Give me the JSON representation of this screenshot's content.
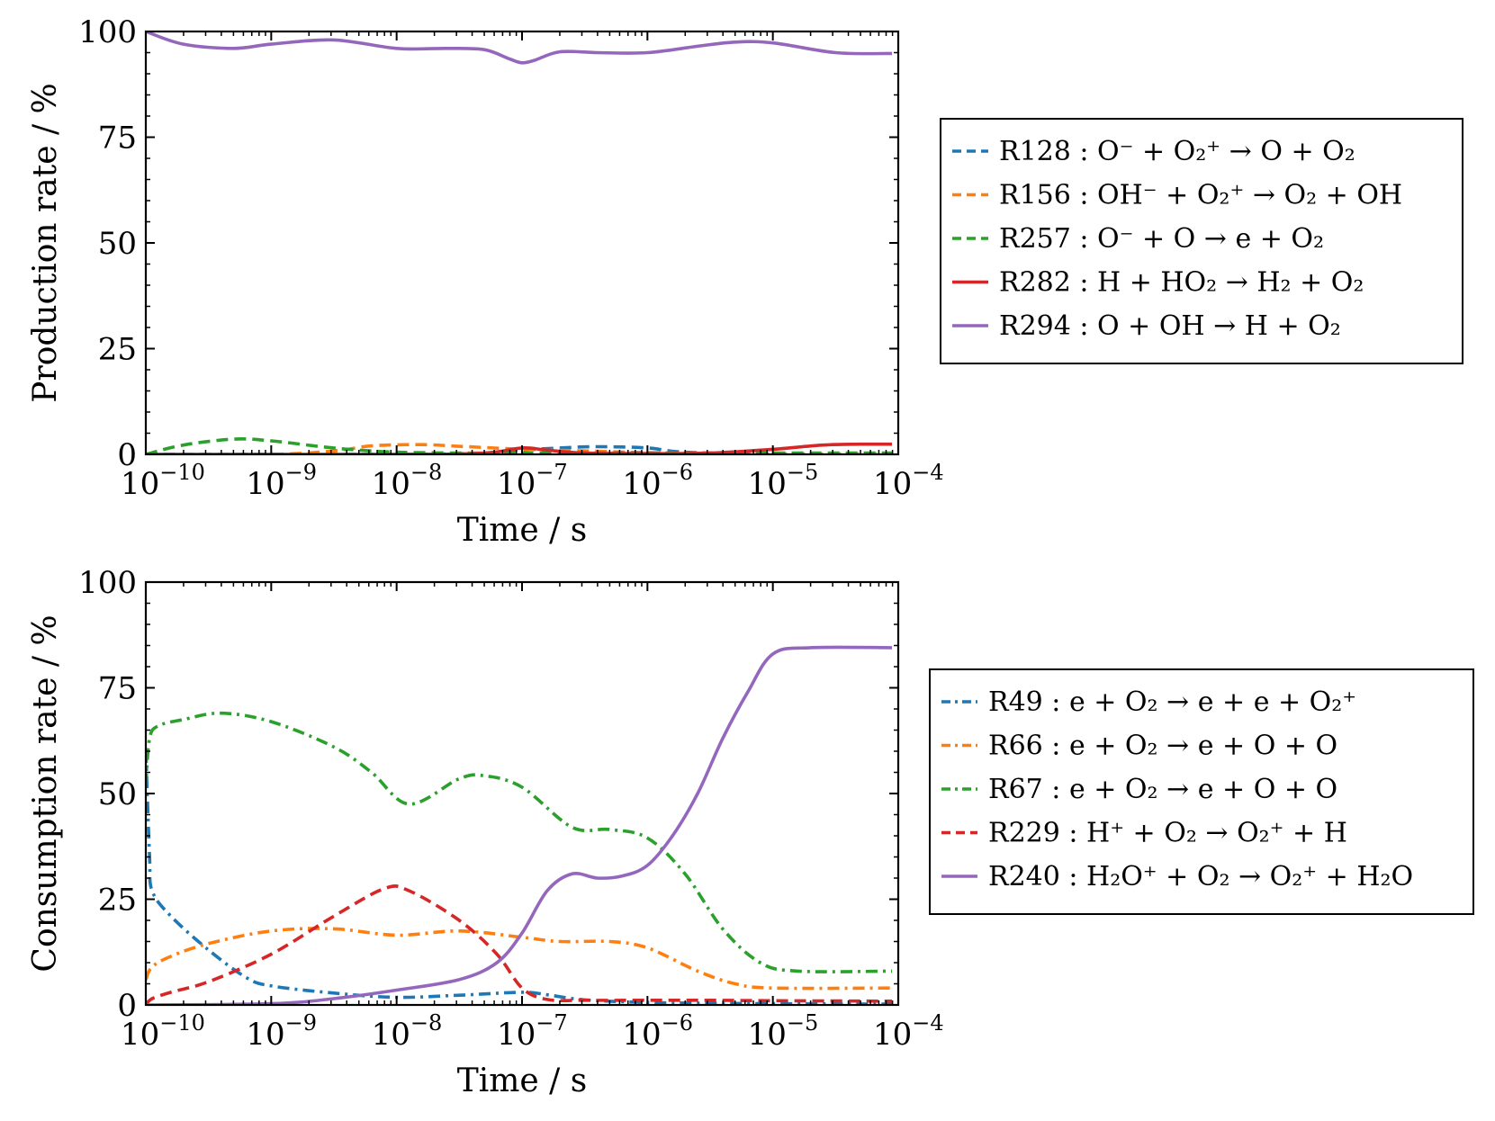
{
  "chart_data": [
    {
      "type": "line",
      "title": "",
      "xlabel": "Time / s",
      "ylabel": "Production rate / %",
      "xscale": "log",
      "xlim_exponent": [
        -10,
        -4
      ],
      "ylim": [
        0,
        100
      ],
      "yticks": [
        0,
        25,
        50,
        75,
        100
      ],
      "xticks": [
        {
          "base": "10",
          "exp": "−10"
        },
        {
          "base": "10",
          "exp": "−9"
        },
        {
          "base": "10",
          "exp": "−8"
        },
        {
          "base": "10",
          "exp": "−7"
        },
        {
          "base": "10",
          "exp": "−6"
        },
        {
          "base": "10",
          "exp": "−5"
        },
        {
          "base": "10",
          "exp": "−4"
        }
      ],
      "legend_position": "right",
      "series": [
        {
          "name": "R128 :  O⁻ + O₂⁺ → O + O₂",
          "color": "#1f77b4",
          "style": "dashed",
          "x": [
            -10,
            -9,
            -8,
            -7.3,
            -7,
            -6.7,
            -6.4,
            -6,
            -5.7,
            -5,
            -4.05
          ],
          "y": [
            0,
            0,
            0,
            0.3,
            1,
            1.5,
            1.8,
            1.5,
            0.5,
            0,
            0
          ]
        },
        {
          "name": "R156 :  OH⁻ + O₂⁺ → O₂ + OH",
          "color": "#ff7f0e",
          "style": "dashed",
          "x": [
            -10,
            -9,
            -8.5,
            -8.2,
            -7.8,
            -7.5,
            -7,
            -6.5,
            -6,
            -5.5,
            -5,
            -4.05
          ],
          "y": [
            0,
            0,
            0.8,
            2,
            2.3,
            1.9,
            1.2,
            0.8,
            0.4,
            0.2,
            0.1,
            0.1
          ]
        },
        {
          "name": "R257 :  O⁻ + O → e + O₂",
          "color": "#2ca02c",
          "style": "dashed",
          "x": [
            -10,
            -9.7,
            -9.3,
            -9,
            -8.6,
            -8.3,
            -8,
            -7.5,
            -7,
            -6.5,
            -6,
            -5,
            -4.05
          ],
          "y": [
            0,
            2.2,
            3.6,
            3.2,
            1.8,
            1,
            0.5,
            0.3,
            0.3,
            0.3,
            0.3,
            0.3,
            0.3
          ]
        },
        {
          "name": "R282 :  H + HO₂ → H₂ + O₂",
          "color": "#d62728",
          "style": "solid",
          "x": [
            -10,
            -8,
            -7.3,
            -7,
            -6.8,
            -6.5,
            -6,
            -5.5,
            -5,
            -4.6,
            -4.3,
            -4.05
          ],
          "y": [
            0,
            0,
            0.3,
            1.5,
            1.0,
            0.3,
            0.2,
            0.3,
            1.2,
            2.2,
            2.4,
            2.4
          ]
        },
        {
          "name": "R294 :  O + OH → H + O₂",
          "color": "#9467bd",
          "style": "solid",
          "x": [
            -10,
            -9.7,
            -9.3,
            -9,
            -8.5,
            -8,
            -7.6,
            -7.3,
            -7.1,
            -7,
            -6.9,
            -6.7,
            -6.4,
            -6,
            -5.6,
            -5.3,
            -5,
            -4.5,
            -4.05
          ],
          "y": [
            100,
            97,
            96,
            97,
            98,
            96,
            96,
            95.7,
            93.5,
            92.6,
            93.2,
            95.2,
            95,
            95,
            96.5,
            97.5,
            97.3,
            95,
            94.8
          ]
        }
      ]
    },
    {
      "type": "line",
      "title": "",
      "xlabel": "Time / s",
      "ylabel": "Consumption rate / %",
      "xscale": "log",
      "xlim_exponent": [
        -10,
        -4
      ],
      "ylim": [
        0,
        100
      ],
      "yticks": [
        0,
        25,
        50,
        75,
        100
      ],
      "xticks": [
        {
          "base": "10",
          "exp": "−10"
        },
        {
          "base": "10",
          "exp": "−9"
        },
        {
          "base": "10",
          "exp": "−8"
        },
        {
          "base": "10",
          "exp": "−7"
        },
        {
          "base": "10",
          "exp": "−6"
        },
        {
          "base": "10",
          "exp": "−5"
        },
        {
          "base": "10",
          "exp": "−4"
        }
      ],
      "legend_position": "right",
      "series": [
        {
          "name": "R49 :  e + O₂ → e + e + O₂⁺",
          "color": "#1f77b4",
          "style": "dashdot",
          "x": [
            -10,
            -9.97,
            -9.95,
            -9.8,
            -9.5,
            -9.2,
            -9,
            -8.5,
            -8,
            -7.5,
            -7,
            -6.8,
            -6.5,
            -6,
            -5.5,
            -5,
            -4.05
          ],
          "y": [
            60,
            35,
            27,
            21,
            13,
            6.5,
            4.5,
            2.8,
            1.8,
            2.3,
            3,
            2.4,
            1.2,
            0.6,
            0.4,
            0.3,
            0.2
          ]
        },
        {
          "name": "R66 :  e + O₂ → e + O + O",
          "color": "#ff7f0e",
          "style": "dashdot",
          "x": [
            -10,
            -9.95,
            -9.8,
            -9.5,
            -9,
            -8.5,
            -8,
            -7.5,
            -7,
            -6.7,
            -6.3,
            -6,
            -5.6,
            -5.3,
            -5,
            -4.05
          ],
          "y": [
            6,
            9,
            11.5,
            14.5,
            17.5,
            18,
            16.5,
            17.5,
            16,
            15,
            15,
            13.5,
            8,
            5,
            4,
            4
          ]
        },
        {
          "name": "R67 :  e + O₂ → e + O + O",
          "color": "#2ca02c",
          "style": "dashdot",
          "x": [
            -10,
            -9.97,
            -9.9,
            -9.7,
            -9.4,
            -9,
            -8.5,
            -8.2,
            -7.9,
            -7.5,
            -7.3,
            -7,
            -6.6,
            -6.3,
            -6,
            -5.7,
            -5.4,
            -5.1,
            -4.8,
            -4.05
          ],
          "y": [
            52,
            63,
            66,
            67.5,
            69,
            67,
            61,
            55,
            47.5,
            53.5,
            54.2,
            51.5,
            42,
            41.5,
            39.5,
            31,
            18,
            10,
            8,
            8
          ]
        },
        {
          "name": "R229 :  H⁺ + O₂ → O₂⁺ + H",
          "color": "#d62728",
          "style": "dashed",
          "x": [
            -10,
            -9.95,
            -9.8,
            -9.5,
            -9,
            -8.5,
            -8.1,
            -7.9,
            -7.5,
            -7.2,
            -7,
            -6.8,
            -6.5,
            -6,
            -5.5,
            -5,
            -4.05
          ],
          "y": [
            0,
            1.5,
            3,
            5.5,
            12,
            21,
            27.5,
            27,
            20,
            12,
            4,
            1.3,
            1.1,
            1.1,
            1.1,
            1,
            0.9
          ]
        },
        {
          "name": "R240 :  H₂O⁺ + O₂ → O₂⁺ + H₂O",
          "color": "#9467bd",
          "style": "solid",
          "x": [
            -10,
            -9,
            -8.5,
            -8,
            -7.5,
            -7.2,
            -7,
            -6.8,
            -6.6,
            -6.4,
            -6.2,
            -6,
            -5.8,
            -5.6,
            -5.4,
            -5.2,
            -5,
            -4.7,
            -4.05
          ],
          "y": [
            0,
            0.3,
            1.5,
            3.5,
            6,
            10,
            17,
            27,
            31,
            30,
            30.5,
            33,
            40,
            50,
            63,
            74,
            83,
            84.5,
            84.5
          ]
        }
      ]
    }
  ]
}
